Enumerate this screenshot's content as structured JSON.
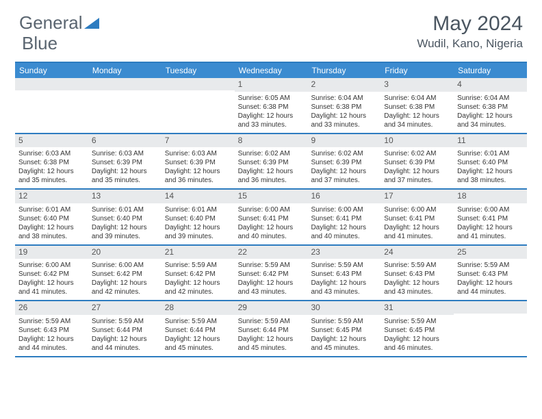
{
  "logo": {
    "text1": "General",
    "text2": "Blue",
    "color_text": "#5a6570",
    "icon_color": "#2d7cc0"
  },
  "title": "May 2024",
  "location": "Wudil, Kano, Nigeria",
  "colors": {
    "header_bg": "#3b8bd0",
    "border": "#2d7cc0",
    "daynum_bg": "#e8eaec",
    "text": "#333333"
  },
  "weekdays": [
    "Sunday",
    "Monday",
    "Tuesday",
    "Wednesday",
    "Thursday",
    "Friday",
    "Saturday"
  ],
  "weeks": [
    [
      {
        "n": "",
        "sr": "",
        "ss": "",
        "dl": ""
      },
      {
        "n": "",
        "sr": "",
        "ss": "",
        "dl": ""
      },
      {
        "n": "",
        "sr": "",
        "ss": "",
        "dl": ""
      },
      {
        "n": "1",
        "sr": "6:05 AM",
        "ss": "6:38 PM",
        "dl": "12 hours and 33 minutes."
      },
      {
        "n": "2",
        "sr": "6:04 AM",
        "ss": "6:38 PM",
        "dl": "12 hours and 33 minutes."
      },
      {
        "n": "3",
        "sr": "6:04 AM",
        "ss": "6:38 PM",
        "dl": "12 hours and 34 minutes."
      },
      {
        "n": "4",
        "sr": "6:04 AM",
        "ss": "6:38 PM",
        "dl": "12 hours and 34 minutes."
      }
    ],
    [
      {
        "n": "5",
        "sr": "6:03 AM",
        "ss": "6:38 PM",
        "dl": "12 hours and 35 minutes."
      },
      {
        "n": "6",
        "sr": "6:03 AM",
        "ss": "6:39 PM",
        "dl": "12 hours and 35 minutes."
      },
      {
        "n": "7",
        "sr": "6:03 AM",
        "ss": "6:39 PM",
        "dl": "12 hours and 36 minutes."
      },
      {
        "n": "8",
        "sr": "6:02 AM",
        "ss": "6:39 PM",
        "dl": "12 hours and 36 minutes."
      },
      {
        "n": "9",
        "sr": "6:02 AM",
        "ss": "6:39 PM",
        "dl": "12 hours and 37 minutes."
      },
      {
        "n": "10",
        "sr": "6:02 AM",
        "ss": "6:39 PM",
        "dl": "12 hours and 37 minutes."
      },
      {
        "n": "11",
        "sr": "6:01 AM",
        "ss": "6:40 PM",
        "dl": "12 hours and 38 minutes."
      }
    ],
    [
      {
        "n": "12",
        "sr": "6:01 AM",
        "ss": "6:40 PM",
        "dl": "12 hours and 38 minutes."
      },
      {
        "n": "13",
        "sr": "6:01 AM",
        "ss": "6:40 PM",
        "dl": "12 hours and 39 minutes."
      },
      {
        "n": "14",
        "sr": "6:01 AM",
        "ss": "6:40 PM",
        "dl": "12 hours and 39 minutes."
      },
      {
        "n": "15",
        "sr": "6:00 AM",
        "ss": "6:41 PM",
        "dl": "12 hours and 40 minutes."
      },
      {
        "n": "16",
        "sr": "6:00 AM",
        "ss": "6:41 PM",
        "dl": "12 hours and 40 minutes."
      },
      {
        "n": "17",
        "sr": "6:00 AM",
        "ss": "6:41 PM",
        "dl": "12 hours and 41 minutes."
      },
      {
        "n": "18",
        "sr": "6:00 AM",
        "ss": "6:41 PM",
        "dl": "12 hours and 41 minutes."
      }
    ],
    [
      {
        "n": "19",
        "sr": "6:00 AM",
        "ss": "6:42 PM",
        "dl": "12 hours and 41 minutes."
      },
      {
        "n": "20",
        "sr": "6:00 AM",
        "ss": "6:42 PM",
        "dl": "12 hours and 42 minutes."
      },
      {
        "n": "21",
        "sr": "5:59 AM",
        "ss": "6:42 PM",
        "dl": "12 hours and 42 minutes."
      },
      {
        "n": "22",
        "sr": "5:59 AM",
        "ss": "6:42 PM",
        "dl": "12 hours and 43 minutes."
      },
      {
        "n": "23",
        "sr": "5:59 AM",
        "ss": "6:43 PM",
        "dl": "12 hours and 43 minutes."
      },
      {
        "n": "24",
        "sr": "5:59 AM",
        "ss": "6:43 PM",
        "dl": "12 hours and 43 minutes."
      },
      {
        "n": "25",
        "sr": "5:59 AM",
        "ss": "6:43 PM",
        "dl": "12 hours and 44 minutes."
      }
    ],
    [
      {
        "n": "26",
        "sr": "5:59 AM",
        "ss": "6:43 PM",
        "dl": "12 hours and 44 minutes."
      },
      {
        "n": "27",
        "sr": "5:59 AM",
        "ss": "6:44 PM",
        "dl": "12 hours and 44 minutes."
      },
      {
        "n": "28",
        "sr": "5:59 AM",
        "ss": "6:44 PM",
        "dl": "12 hours and 45 minutes."
      },
      {
        "n": "29",
        "sr": "5:59 AM",
        "ss": "6:44 PM",
        "dl": "12 hours and 45 minutes."
      },
      {
        "n": "30",
        "sr": "5:59 AM",
        "ss": "6:45 PM",
        "dl": "12 hours and 45 minutes."
      },
      {
        "n": "31",
        "sr": "5:59 AM",
        "ss": "6:45 PM",
        "dl": "12 hours and 46 minutes."
      },
      {
        "n": "",
        "sr": "",
        "ss": "",
        "dl": ""
      }
    ]
  ],
  "labels": {
    "sunrise": "Sunrise:",
    "sunset": "Sunset:",
    "daylight": "Daylight:"
  }
}
